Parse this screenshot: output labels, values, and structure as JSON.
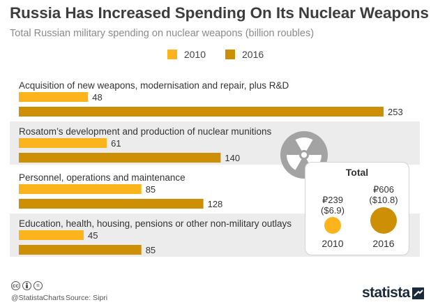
{
  "title": "Russia Has Increased Spending On Its Nuclear Weapons",
  "subtitle": "Total Russian military spending on nuclear weapons (billion roubles)",
  "colors": {
    "y2010": "#fbb41b",
    "y2016": "#cc8f06",
    "band": "#ececec",
    "icon": "#a3a3a3"
  },
  "chart_data": {
    "type": "bar",
    "orientation": "horizontal",
    "legend_position": "top-center",
    "categories": [
      "Acquisition of new weapons, modernisation and repair, plus R&D",
      "Rosatom’s development and production of nuclear munitions",
      "Personnel, operations and maintenance",
      "Education, health, housing, pensions or other non-military outlays"
    ],
    "series": [
      {
        "name": "2010",
        "values": [
          48,
          61,
          85,
          45
        ]
      },
      {
        "name": "2016",
        "values": [
          253,
          140,
          128,
          85
        ]
      }
    ],
    "xlim": [
      0,
      253
    ]
  },
  "total": {
    "title": "Total",
    "items": [
      {
        "year": "2010",
        "rub": "₽239",
        "usd": "($6.9)",
        "value": 239
      },
      {
        "year": "2016",
        "rub": "₽606",
        "usd": "($10.8)",
        "value": 606
      }
    ]
  },
  "footer": {
    "icons": [
      "cc-icon",
      "by-icon",
      "nd-icon"
    ],
    "cc": "cc",
    "nd": "=",
    "handle": "@StatistaCharts",
    "source": "Source: Sipri",
    "logo": "statista"
  }
}
